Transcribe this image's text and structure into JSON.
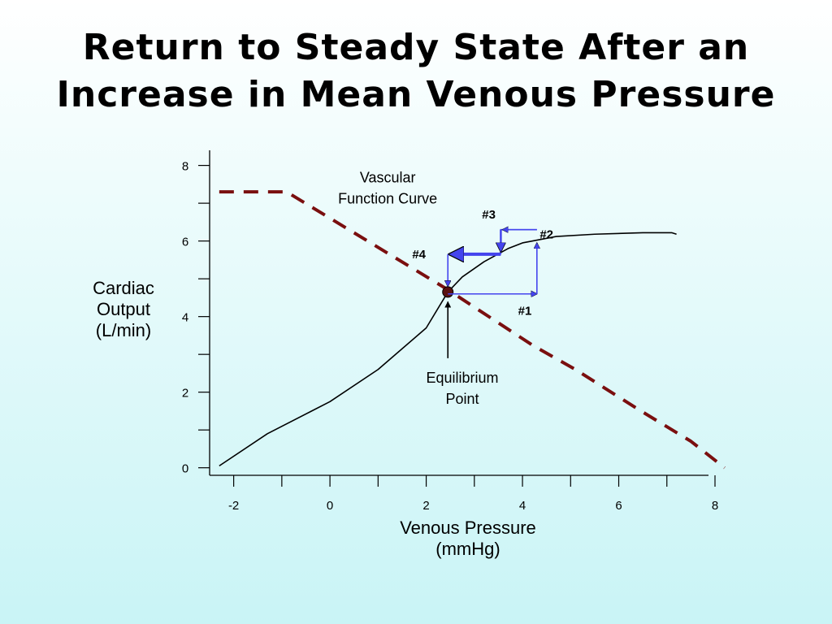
{
  "slide": {
    "title_line1": "Return to Steady State After an",
    "title_line2": "Increase in Mean Venous Pressure"
  },
  "chart_data": {
    "type": "line",
    "xlabel": "Venous Pressure (mmHg)",
    "xlabel_lines": [
      "Venous Pressure",
      "(mmHg)"
    ],
    "ylabel": "Cardiac Output (L/min)",
    "ylabel_lines": [
      "Cardiac",
      "Output",
      "(L/min)"
    ],
    "xlim": [
      -2.5,
      8
    ],
    "ylim": [
      -0.2,
      8.4
    ],
    "x_ticks": [
      -2,
      0,
      2,
      4,
      6,
      8
    ],
    "x_tick_labels": [
      "-2",
      "0",
      "2",
      "4",
      "6",
      "8"
    ],
    "y_ticks": [
      0,
      2,
      4,
      6,
      8
    ],
    "y_tick_labels": [
      "0",
      "2",
      "4",
      "6",
      "8"
    ],
    "grid": false,
    "series": [
      {
        "name": "Vascular Function Curve",
        "style": "dashed",
        "color": "#7a0f0f",
        "x": [
          -2.3,
          -0.9,
          2.4,
          4.2,
          5.1,
          6.4,
          7.5,
          8.2
        ],
        "y": [
          7.3,
          7.3,
          4.75,
          3.25,
          2.6,
          1.55,
          0.7,
          0.0
        ]
      },
      {
        "name": "",
        "style": "solid",
        "color": "#000000",
        "x": [
          -2.3,
          -1.3,
          0.0,
          1.0,
          2.0,
          2.45,
          2.75,
          3.2,
          3.7,
          4.0,
          4.7,
          5.5,
          6.5,
          7.1,
          7.2
        ],
        "y": [
          0.05,
          0.9,
          1.75,
          2.6,
          3.7,
          4.65,
          5.05,
          5.45,
          5.8,
          5.95,
          6.12,
          6.18,
          6.22,
          6.22,
          6.18
        ]
      }
    ],
    "equilibrium_point": {
      "x": 2.45,
      "y": 4.65
    },
    "arrow_color": "#4444ee",
    "steps": [
      {
        "label": "#1",
        "from": [
          2.45,
          4.6
        ],
        "to": [
          4.3,
          4.6
        ],
        "label_at": [
          4.05,
          4.15
        ]
      },
      {
        "label": "#2",
        "from": [
          4.3,
          4.6
        ],
        "to": [
          4.3,
          5.95
        ],
        "label_at": [
          4.5,
          6.18
        ]
      },
      {
        "label": "#3",
        "from": [
          4.3,
          6.3
        ],
        "to": [
          3.55,
          6.3
        ],
        "from_to_path": [
          [
            3.55,
            5.65
          ],
          [
            3.55,
            6.3
          ],
          [
            4.3,
            6.3
          ]
        ],
        "label_at": [
          3.3,
          6.7
        ]
      },
      {
        "label": "#4",
        "from": [
          3.55,
          5.65
        ],
        "to": [
          2.45,
          5.65
        ],
        "from_to_path": [
          [
            2.45,
            5.65
          ],
          [
            2.45,
            4.8
          ]
        ],
        "label_at": [
          1.85,
          5.65
        ]
      }
    ],
    "annotations": [
      {
        "id": "vascular",
        "lines": [
          "Vascular",
          "Function Curve"
        ],
        "x": 1.2,
        "y": 7.55
      },
      {
        "id": "equilibrium",
        "lines": [
          "Equilibrium",
          "Point"
        ],
        "x": 2.75,
        "y": 2.25
      }
    ]
  }
}
